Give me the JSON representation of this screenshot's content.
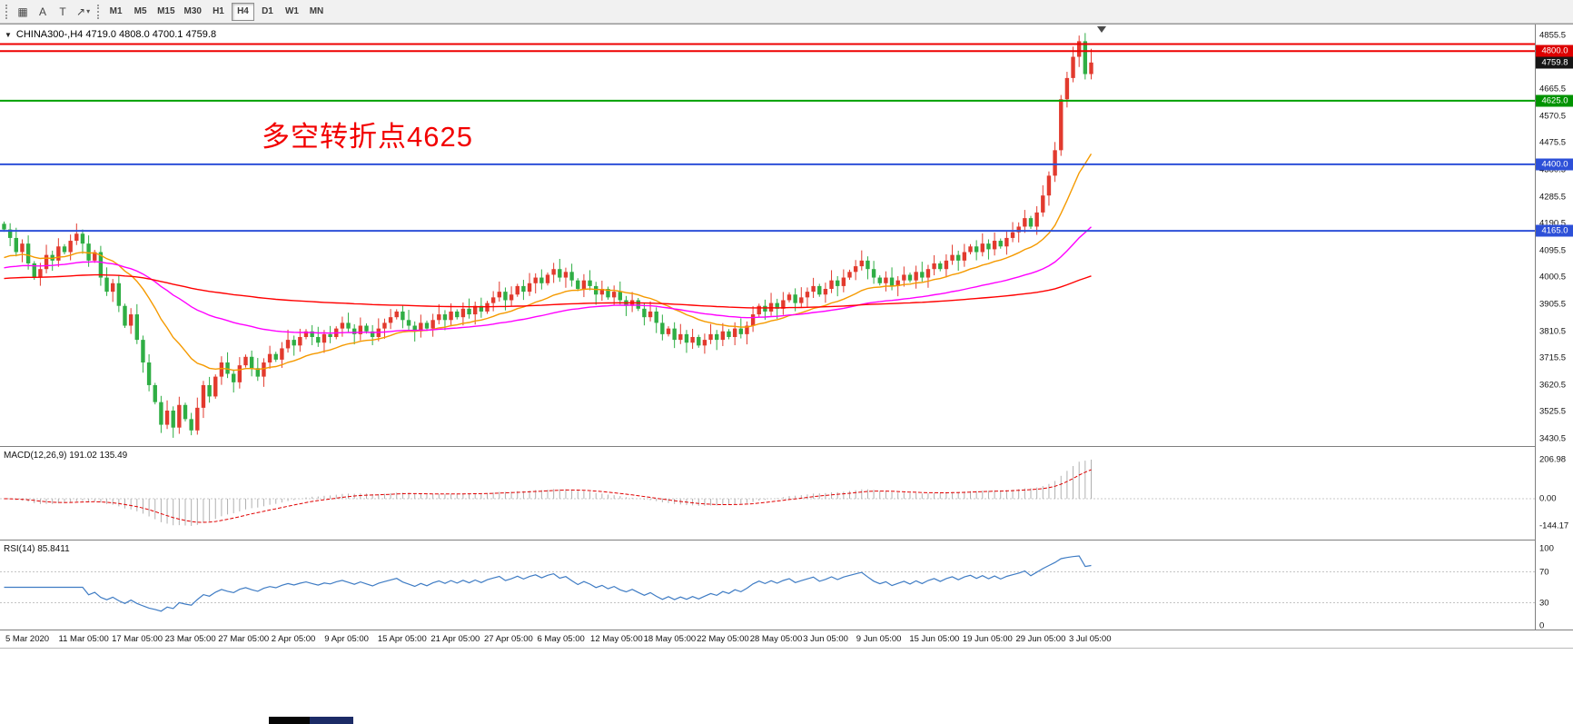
{
  "toolbar": {
    "tools": [
      {
        "name": "grid-icon",
        "glyph": "▦"
      },
      {
        "name": "text-a-icon",
        "glyph": "A"
      },
      {
        "name": "text-label-icon",
        "glyph": "T"
      },
      {
        "name": "arrow-tools-icon",
        "glyph": "↗",
        "caret": "▾"
      }
    ],
    "timeframes": [
      "M1",
      "M5",
      "M15",
      "M30",
      "H1",
      "H4",
      "D1",
      "W1",
      "MN"
    ],
    "active_timeframe": "H4"
  },
  "chart": {
    "menu_icon": "▼",
    "title": "CHINA300-,H4 4719.0 4808.0 4700.1 4759.8",
    "annotation": "多空转折点4625",
    "macd_label": "MACD(12,26,9) 191.02 135.49",
    "rsi_label": "RSI(14) 85.8411"
  },
  "chart_data": {
    "type": "candlestick",
    "symbol": "CHINA300-",
    "period": "H4",
    "last_ohlc": {
      "open": 4719.0,
      "high": 4808.0,
      "low": 4700.1,
      "close": 4759.8
    },
    "price_axis": {
      "max": 4855.5,
      "min": 3430.5,
      "ticks": [
        4855.5,
        4760.5,
        4665.5,
        4570.5,
        4475.5,
        4380.5,
        4285.5,
        4190.5,
        4095.5,
        4000.5,
        3905.5,
        3810.5,
        3715.5,
        3620.5,
        3525.5,
        3430.5
      ]
    },
    "levels": [
      {
        "value": 4825.0,
        "color": "#ee0000",
        "width": 2,
        "tag": null
      },
      {
        "value": 4800.0,
        "color": "#ee0000",
        "width": 2,
        "tag": "4800.0",
        "tag_color": "#dd0000"
      },
      {
        "value": 4625.0,
        "color": "#00a000",
        "width": 2,
        "tag": "4625.0",
        "tag_color": "#009300"
      },
      {
        "value": 4400.0,
        "color": "#2d50d8",
        "width": 2,
        "tag": "4400.0",
        "tag_color": "#2d50d8"
      },
      {
        "value": 4165.0,
        "color": "#2d50d8",
        "width": 2,
        "tag": "4165.0",
        "tag_color": "#2d50d8"
      }
    ],
    "current_price_tag": {
      "value": 4759.8,
      "label": "4759.8",
      "bg": "#161616"
    },
    "time_axis": [
      "5 Mar 2020",
      "11 Mar 05:00",
      "17 Mar 05:00",
      "23 Mar 05:00",
      "27 Mar 05:00",
      "2 Apr 05:00",
      "9 Apr 05:00",
      "15 Apr 05:00",
      "21 Apr 05:00",
      "27 Apr 05:00",
      "6 May 05:00",
      "12 May 05:00",
      "18 May 05:00",
      "22 May 05:00",
      "28 May 05:00",
      "3 Jun 05:00",
      "9 Jun 05:00",
      "15 Jun 05:00",
      "19 Jun 05:00",
      "29 Jun 05:00",
      "3 Jul 05:00"
    ],
    "candles": {
      "up_color": "#e23a2e",
      "down_color": "#2fae44",
      "closes": [
        4170,
        4140,
        4090,
        4120,
        4050,
        4000,
        4030,
        4080,
        4060,
        4110,
        4090,
        4130,
        4155,
        4120,
        4060,
        4090,
        4000,
        3950,
        3980,
        3900,
        3830,
        3870,
        3780,
        3700,
        3620,
        3560,
        3480,
        3530,
        3470,
        3550,
        3500,
        3460,
        3540,
        3620,
        3580,
        3650,
        3700,
        3660,
        3630,
        3690,
        3720,
        3680,
        3650,
        3700,
        3730,
        3710,
        3750,
        3780,
        3760,
        3790,
        3810,
        3790,
        3770,
        3800,
        3790,
        3820,
        3840,
        3820,
        3800,
        3830,
        3810,
        3790,
        3820,
        3840,
        3860,
        3880,
        3850,
        3830,
        3810,
        3840,
        3820,
        3850,
        3870,
        3850,
        3880,
        3860,
        3890,
        3870,
        3900,
        3880,
        3910,
        3930,
        3950,
        3920,
        3940,
        3970,
        3950,
        3980,
        4000,
        3980,
        4010,
        4030,
        4000,
        4020,
        3990,
        3960,
        3990,
        3970,
        3940,
        3960,
        3930,
        3950,
        3920,
        3900,
        3920,
        3890,
        3860,
        3880,
        3840,
        3800,
        3820,
        3780,
        3800,
        3770,
        3790,
        3760,
        3780,
        3800,
        3780,
        3810,
        3790,
        3820,
        3800,
        3830,
        3870,
        3900,
        3880,
        3910,
        3890,
        3920,
        3940,
        3910,
        3930,
        3950,
        3970,
        3940,
        3960,
        3990,
        3970,
        4000,
        4020,
        4040,
        4060,
        4030,
        4000,
        3980,
        4000,
        3970,
        3990,
        4010,
        3990,
        4020,
        4000,
        4030,
        4050,
        4030,
        4060,
        4080,
        4060,
        4090,
        4110,
        4090,
        4120,
        4100,
        4130,
        4110,
        4140,
        4160,
        4180,
        4210,
        4180,
        4230,
        4290,
        4360,
        4450,
        4630,
        4705,
        4780,
        4835,
        4719,
        4759.8
      ],
      "overrides": {
        "31": {
          "low": 3443
        },
        "175": {
          "low": 4430,
          "high": 4645
        },
        "178": {
          "high": 4855
        },
        "179": {
          "low": 4700
        },
        "180": {
          "open": 4719.0,
          "high": 4808.0,
          "low": 4700.1,
          "close": 4759.8
        }
      }
    },
    "moving_averages": [
      {
        "name": "fast-orange",
        "period": 20,
        "seed": 4060,
        "color": "#f59a00"
      },
      {
        "name": "medium-magenta",
        "period": 60,
        "seed": 4030,
        "color": "#ff00ff"
      },
      {
        "name": "slow-red",
        "period": 200,
        "seed": 3995,
        "color": "#ff0000"
      }
    ],
    "macd": {
      "fast": 12,
      "slow": 26,
      "signal": 9,
      "value": 191.02,
      "signal_value": 135.49,
      "scale_max": 206.98,
      "scale_min": -144.17,
      "axis_labels": [
        "206.98",
        "0.00",
        "-144.17"
      ],
      "histogram_color": "#b0b0b0",
      "signal_color": "#e00000"
    },
    "rsi": {
      "period": 14,
      "value": 85.8411,
      "levels": [
        70,
        30
      ],
      "axis_labels": [
        "100",
        "70",
        "30",
        "0"
      ],
      "color": "#3f7cc4"
    }
  }
}
